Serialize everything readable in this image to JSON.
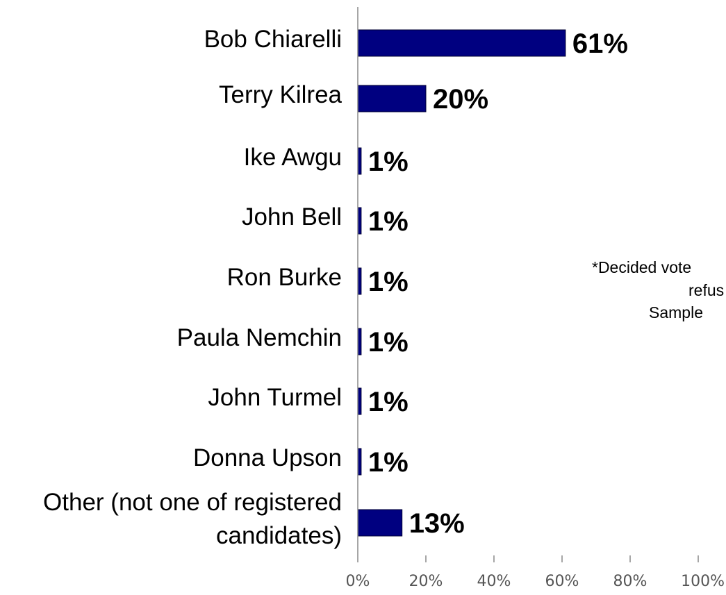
{
  "chart_data": {
    "type": "bar",
    "orientation": "horizontal",
    "categories": [
      [
        "Bob Chiarelli"
      ],
      [
        "Terry Kilrea"
      ],
      [
        "Ike Awgu"
      ],
      [
        "John Bell"
      ],
      [
        "Ron Burke"
      ],
      [
        "Paula Nemchin"
      ],
      [
        "John Turmel"
      ],
      [
        "Donna Upson"
      ],
      [
        "Other (not one of registered",
        "candidates)"
      ]
    ],
    "values": [
      61,
      20,
      1,
      1,
      1,
      1,
      1,
      1,
      13
    ],
    "value_labels": [
      "61%",
      "20%",
      "1%",
      "1%",
      "1%",
      "1%",
      "1%",
      "1%",
      "13%"
    ],
    "xlim": [
      0,
      100
    ],
    "xticks": [
      "0%",
      "20%",
      "40%",
      "60%",
      "80%",
      "100%"
    ],
    "bar_color": "#000080",
    "grid": false,
    "notes": [
      "*Decided vote",
      "refus",
      "Sample"
    ]
  }
}
